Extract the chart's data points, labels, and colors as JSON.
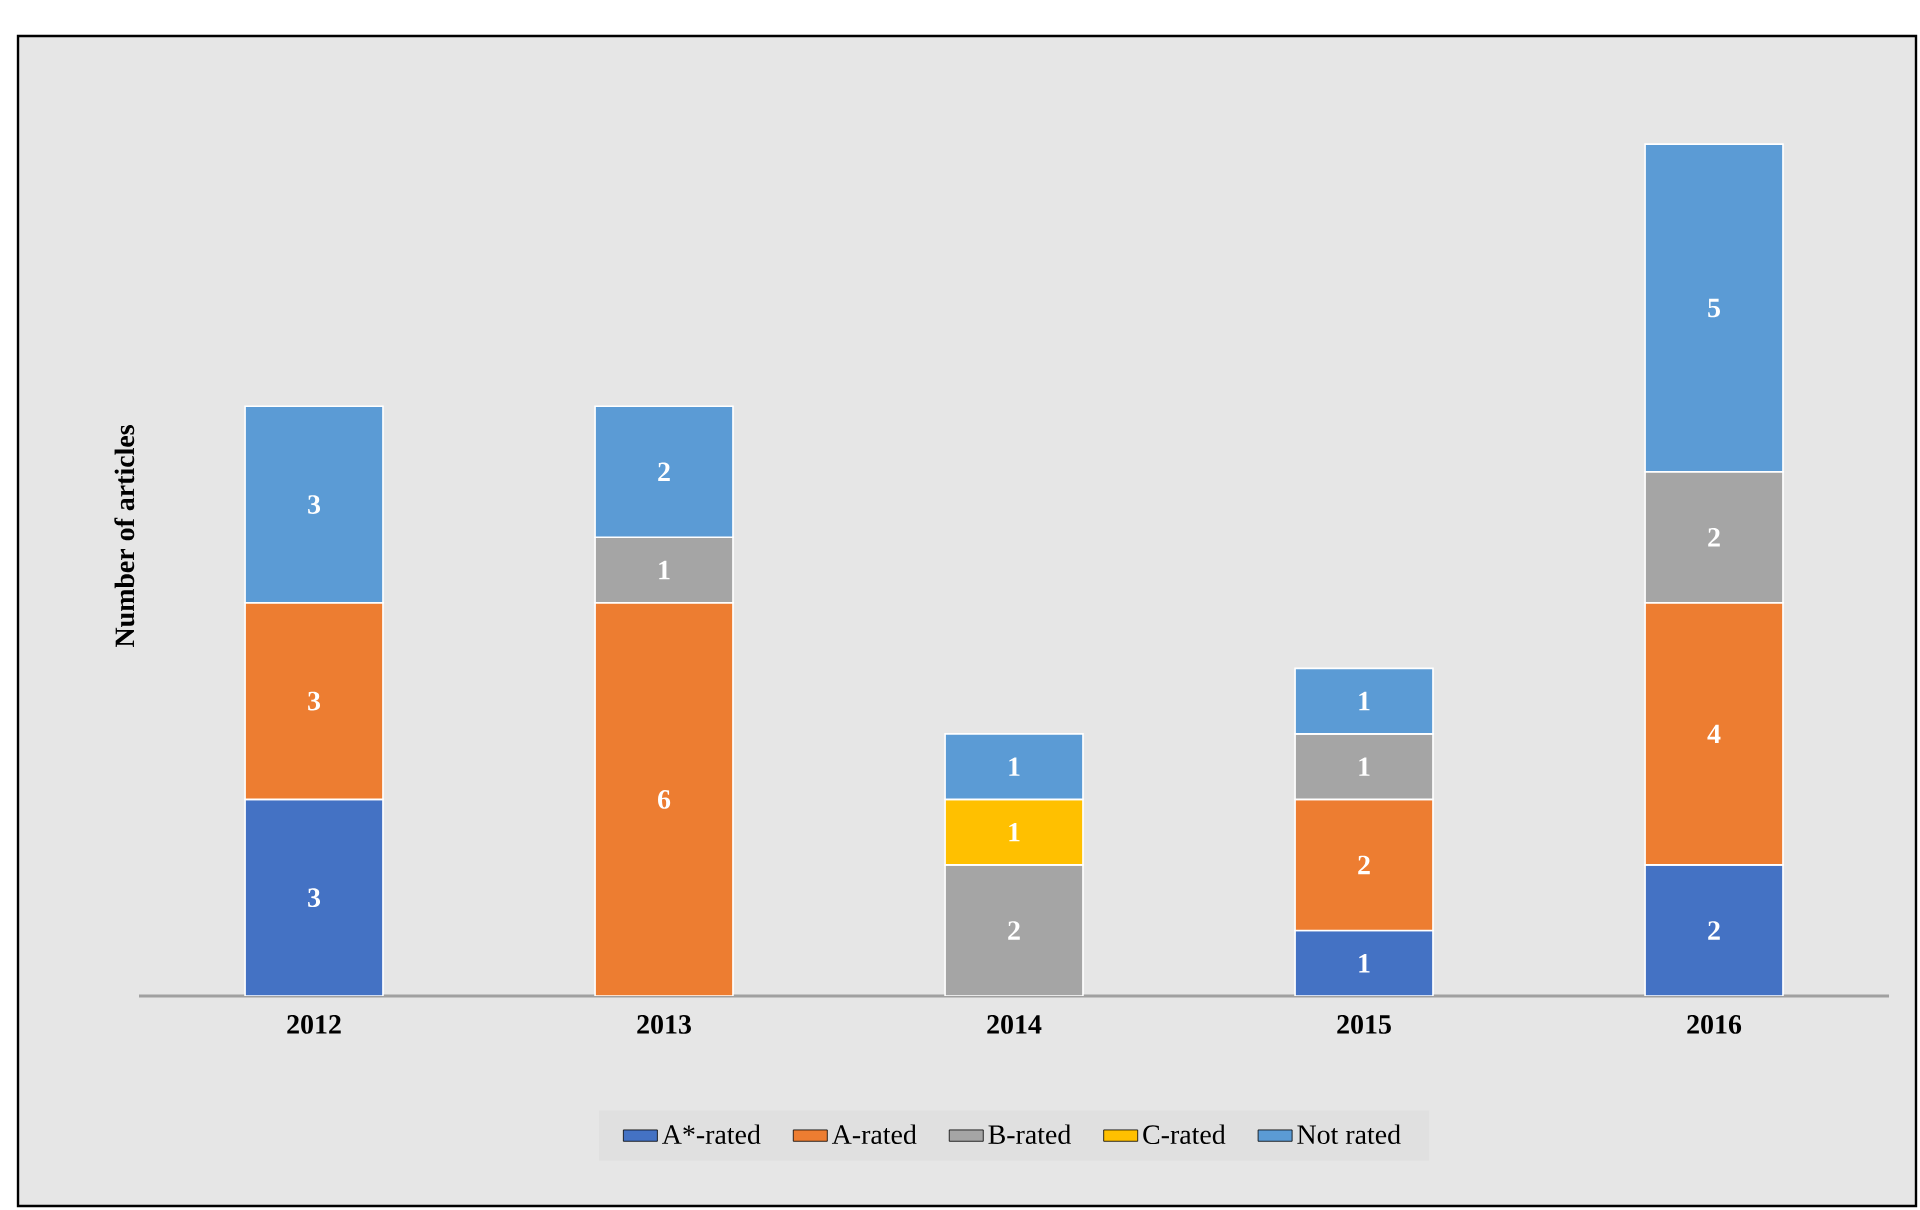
{
  "chart_data": {
    "type": "bar",
    "stacked": true,
    "ylabel": "Number of articles",
    "categories": [
      "2012",
      "2013",
      "2014",
      "2015",
      "2016"
    ],
    "series": [
      {
        "name": "A*-rated",
        "color": "#4472c4",
        "values": [
          3,
          null,
          null,
          1,
          2
        ]
      },
      {
        "name": "A-rated",
        "color": "#ed7d31",
        "values": [
          3,
          6,
          null,
          2,
          4
        ]
      },
      {
        "name": "B-rated",
        "color": "#a5a5a5",
        "values": [
          null,
          1,
          2,
          1,
          2
        ]
      },
      {
        "name": "C-rated",
        "color": "#ffc000",
        "values": [
          null,
          null,
          1,
          null,
          null
        ]
      },
      {
        "name": "Not rated",
        "color": "#5b9bd5",
        "values": [
          3,
          2,
          1,
          1,
          5
        ]
      }
    ],
    "tick_labels": "x",
    "legend": "bottom",
    "data_labels": true
  }
}
